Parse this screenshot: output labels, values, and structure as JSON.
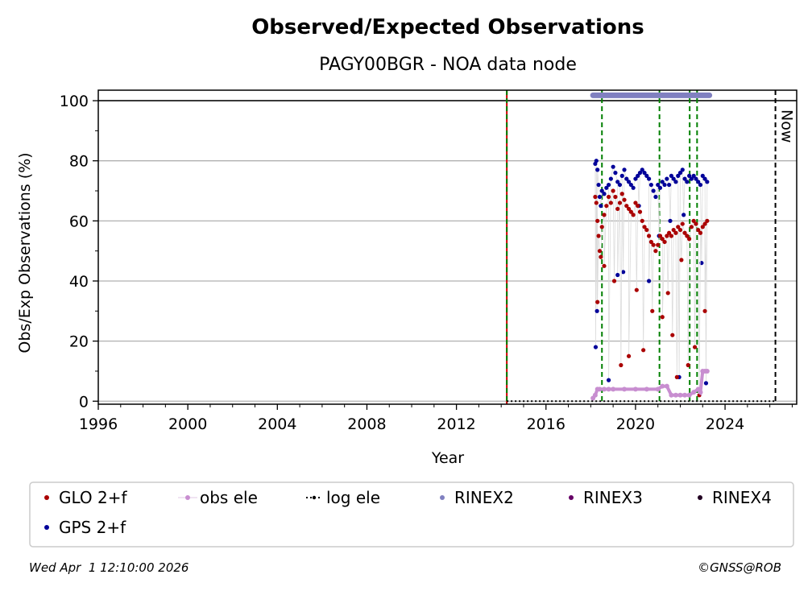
{
  "chart_data": {
    "type": "scatter",
    "title": "Observed/Expected Observations",
    "subtitle": "PAGY00BGR - NOA data node",
    "xlabel": "Year",
    "ylabel": "Obs/Exp Observations (%)",
    "xlim": [
      1996,
      2027.2
    ],
    "ylim": [
      -1,
      103.5
    ],
    "x_ticks": [
      1996,
      2000,
      2004,
      2008,
      2012,
      2016,
      2020,
      2024
    ],
    "y_ticks": [
      0,
      20,
      40,
      60,
      80,
      100
    ],
    "grid": "horizontal",
    "legend_position": "bottom",
    "legend": [
      {
        "label": "GLO 2+f",
        "color": "#aa0000",
        "marker": "dot"
      },
      {
        "label": "obs ele",
        "color": "#c88ed0",
        "marker": "line-dot"
      },
      {
        "label": "log ele",
        "color": "#000000",
        "marker": "dotted-line"
      },
      {
        "label": "RINEX2",
        "color": "#8080c0",
        "marker": "dot"
      },
      {
        "label": "RINEX3",
        "color": "#660066",
        "marker": "dot"
      },
      {
        "label": "RINEX4",
        "color": "#220022",
        "marker": "dot"
      },
      {
        "label": "GPS 2+f",
        "color": "#000099",
        "marker": "dot"
      }
    ],
    "reference_lines": {
      "hundred_percent": 100,
      "station_setup_year": 2014.25,
      "equipment_changes": [
        2018.5,
        2021.07,
        2022.42,
        2022.75
      ],
      "now": 2026.25,
      "now_label": "Now"
    },
    "series": [
      {
        "name": "GPS 2+f",
        "color": "#000099",
        "x": [
          2018.2,
          2018.25,
          2018.3,
          2018.35,
          2018.4,
          2018.45,
          2018.5,
          2018.6,
          2018.7,
          2018.8,
          2018.9,
          2019.0,
          2019.1,
          2019.2,
          2019.3,
          2019.4,
          2019.5,
          2019.6,
          2019.7,
          2019.8,
          2019.9,
          2020.0,
          2020.1,
          2020.2,
          2020.3,
          2020.4,
          2020.5,
          2020.6,
          2020.7,
          2020.8,
          2020.9,
          2021.0,
          2021.1,
          2021.2,
          2021.3,
          2021.4,
          2021.5,
          2021.6,
          2021.7,
          2021.8,
          2021.9,
          2022.0,
          2022.1,
          2022.2,
          2022.3,
          2022.4,
          2022.5,
          2022.6,
          2022.7,
          2022.8,
          2022.9,
          2023.0,
          2023.1,
          2023.2,
          2018.22,
          2018.28,
          2019.45,
          2020.15,
          2021.05,
          2021.55,
          2022.15,
          2022.95,
          2023.15,
          2018.8,
          2019.2,
          2020.6,
          2021.95
        ],
        "y": [
          79,
          80,
          77,
          72,
          68,
          65,
          70,
          69,
          71,
          72,
          74,
          78,
          76,
          73,
          72,
          75,
          77,
          74,
          73,
          72,
          71,
          74,
          75,
          76,
          77,
          76,
          75,
          74,
          72,
          70,
          68,
          72,
          71,
          73,
          72,
          74,
          72,
          75,
          74,
          73,
          75,
          76,
          77,
          74,
          73,
          75,
          74,
          75,
          74,
          73,
          72,
          75,
          74,
          73,
          18,
          30,
          43,
          65,
          55,
          60,
          62,
          46,
          6,
          7,
          42,
          40,
          8
        ]
      },
      {
        "name": "GLO 2+f",
        "color": "#aa0000",
        "x": [
          2018.2,
          2018.25,
          2018.3,
          2018.35,
          2018.4,
          2018.45,
          2018.5,
          2018.6,
          2018.7,
          2018.8,
          2018.9,
          2019.0,
          2019.1,
          2019.2,
          2019.3,
          2019.4,
          2019.5,
          2019.6,
          2019.7,
          2019.8,
          2019.9,
          2020.0,
          2020.1,
          2020.2,
          2020.3,
          2020.4,
          2020.5,
          2020.6,
          2020.7,
          2020.8,
          2020.9,
          2021.0,
          2021.1,
          2021.2,
          2021.3,
          2021.4,
          2021.5,
          2021.6,
          2021.7,
          2021.8,
          2021.9,
          2022.0,
          2022.1,
          2022.2,
          2022.3,
          2022.4,
          2022.5,
          2022.6,
          2022.7,
          2022.8,
          2022.9,
          2023.0,
          2023.1,
          2023.2,
          2018.3,
          2018.6,
          2019.05,
          2019.35,
          2019.7,
          2020.05,
          2020.35,
          2020.75,
          2021.2,
          2021.45,
          2021.65,
          2021.85,
          2022.05,
          2022.35,
          2022.65,
          2022.85,
          2023.1
        ],
        "y": [
          68,
          66,
          60,
          55,
          50,
          48,
          58,
          62,
          65,
          68,
          66,
          70,
          68,
          64,
          66,
          69,
          67,
          65,
          64,
          63,
          62,
          66,
          65,
          63,
          60,
          58,
          57,
          55,
          53,
          52,
          50,
          52,
          55,
          54,
          53,
          55,
          56,
          55,
          57,
          56,
          58,
          57,
          59,
          56,
          55,
          54,
          58,
          60,
          59,
          57,
          56,
          58,
          59,
          60,
          33,
          45,
          40,
          12,
          15,
          37,
          17,
          30,
          28,
          36,
          22,
          8,
          47,
          12,
          18,
          2,
          30
        ]
      },
      {
        "name": "obs ele",
        "color": "#c88ed0",
        "x": [
          2018.1,
          2018.2,
          2018.3,
          2018.4,
          2018.6,
          2018.8,
          2019.0,
          2019.5,
          2020.0,
          2020.5,
          2021.0,
          2021.2,
          2021.4,
          2021.6,
          2021.8,
          2022.0,
          2022.2,
          2022.4,
          2022.6,
          2022.8,
          2022.9,
          2023.0,
          2023.1,
          2023.2
        ],
        "y": [
          1,
          2,
          4,
          4,
          4,
          4,
          4,
          4,
          4,
          4,
          4,
          5,
          5,
          2,
          2,
          2,
          2,
          2,
          3,
          4,
          3,
          10,
          10,
          10
        ]
      },
      {
        "name": "log ele",
        "color": "#000000",
        "x": [
          2014.25,
          2026.25
        ],
        "y": [
          0,
          0
        ]
      },
      {
        "name": "RINEX2",
        "color": "#8080c0",
        "x": [
          2018.1,
          2023.3
        ],
        "y": [
          101.8,
          101.8
        ]
      }
    ]
  },
  "footer": {
    "timestamp": "Wed Apr  1 12:10:00 2026",
    "copyright": "©GNSS@ROB"
  }
}
